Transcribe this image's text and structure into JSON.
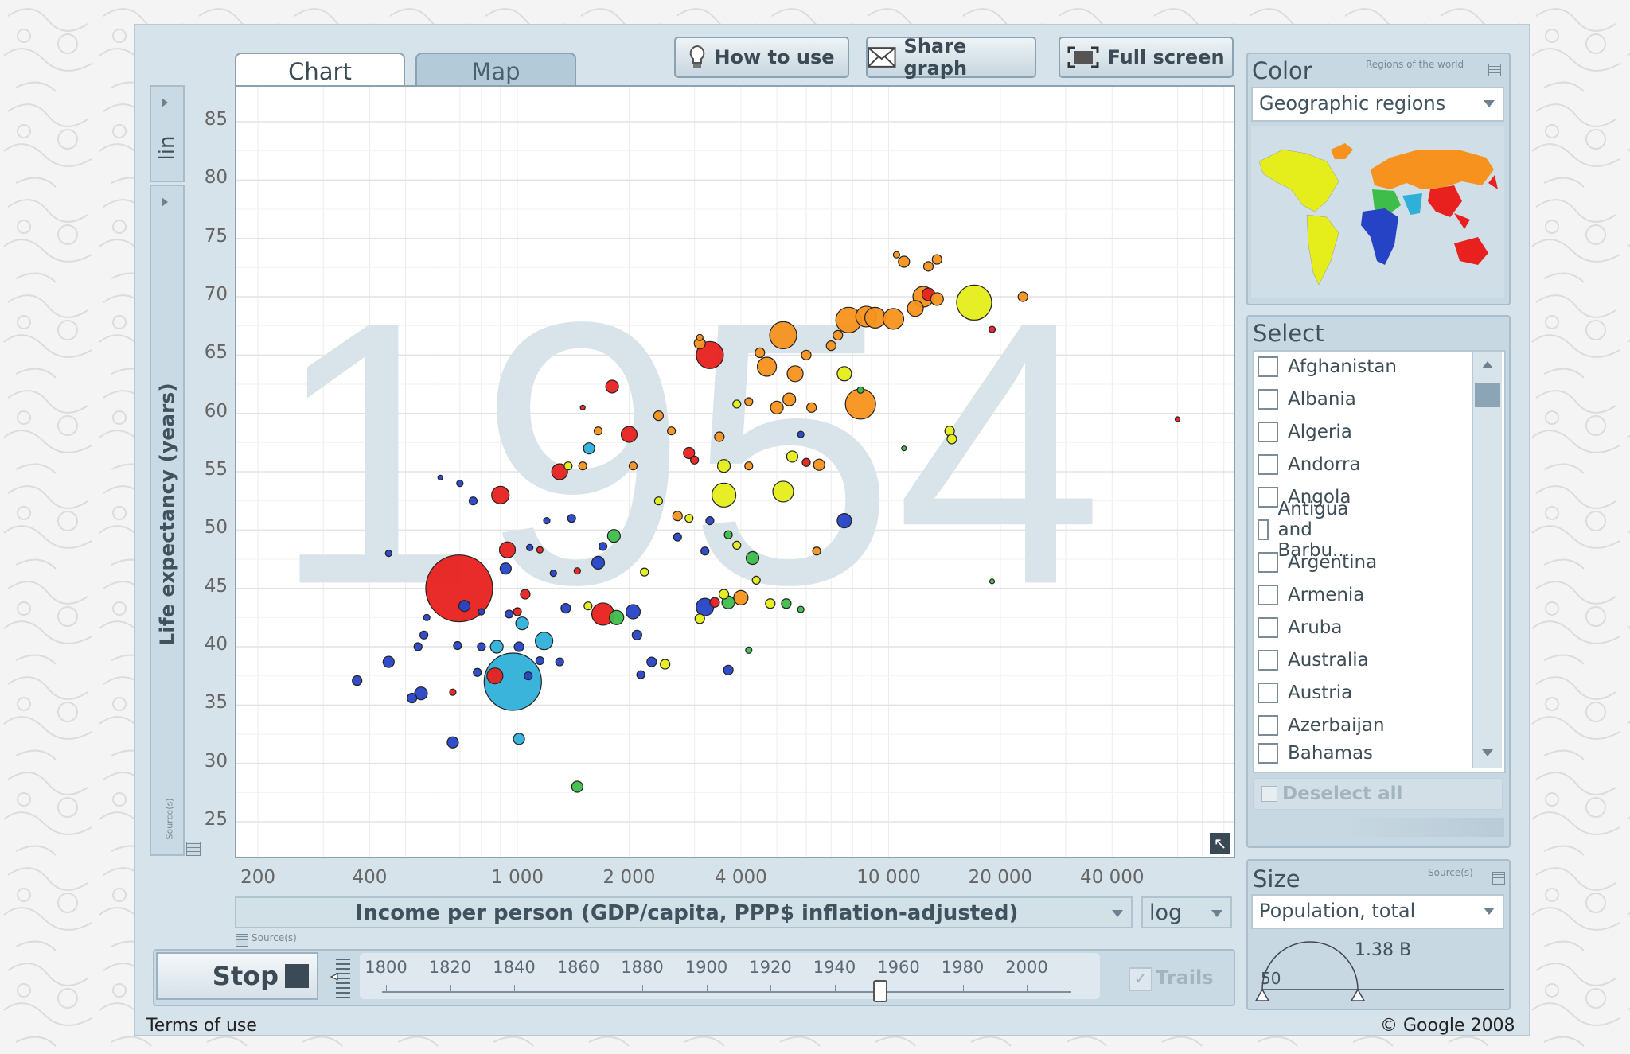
{
  "tabs": {
    "chart": "Chart",
    "map": "Map"
  },
  "toolbar": {
    "how_to_use": "How to use",
    "share_graph": "Share graph",
    "full_screen": "Full screen"
  },
  "y_axis": {
    "scale": "lin",
    "label": "Life expectancy (years)",
    "source": "Source(s)"
  },
  "x_axis": {
    "label": "Income per person (GDP/capita, PPP$ inflation-adjusted)",
    "scale": "log",
    "source": "Source(s)"
  },
  "year_watermark": "1954",
  "color_panel": {
    "title": "Color",
    "subtitle": "Regions of the world",
    "selected": "Geographic regions"
  },
  "select_panel": {
    "title": "Select",
    "countries": [
      "Afghanistan",
      "Albania",
      "Algeria",
      "Andorra",
      "Angola",
      "Antigua and Barbu...",
      "Argentina",
      "Armenia",
      "Aruba",
      "Australia",
      "Austria",
      "Azerbaijan",
      "Bahamas"
    ],
    "deselect_all": "Deselect all"
  },
  "size_panel": {
    "title": "Size",
    "source": "Source(s)",
    "selected": "Population, total",
    "max_label": "1.38 B",
    "min_label": "50"
  },
  "playback": {
    "stop_label": "Stop",
    "trails_label": "Trails",
    "years": [
      "1800",
      "1820",
      "1840",
      "1860",
      "1880",
      "1900",
      "1920",
      "1940",
      "1960",
      "1980",
      "2000"
    ],
    "current_year": 1954
  },
  "footer": {
    "terms": "Terms of use",
    "copyright": "© Google 2008"
  },
  "colors": {
    "south_asia": "#e8211f",
    "east_asia": "#2fb0d9",
    "africa": "#2643c6",
    "americas": "#e5ee1a",
    "europe": "#f7921e",
    "middle_east": "#3ebd4a"
  },
  "chart_data": {
    "type": "scatter",
    "title": "",
    "xlabel": "Income per person (GDP/capita, PPP$ inflation-adjusted)",
    "ylabel": "Life expectancy (years)",
    "x_scale": "log",
    "x_ticks": [
      "200",
      "400",
      "1 000",
      "2 000",
      "4 000",
      "10 000",
      "20 000",
      "40 000"
    ],
    "y_ticks": [
      85,
      80,
      75,
      70,
      65,
      60,
      55,
      50,
      45,
      40,
      35,
      30,
      25
    ],
    "xlim": [
      175,
      85000
    ],
    "ylim": [
      22,
      88
    ],
    "points": [
      {
        "x": 697,
        "y": 45,
        "r": 42,
        "c": "#e8211f"
      },
      {
        "x": 972,
        "y": 37,
        "r": 36,
        "c": "#2fb0d9"
      },
      {
        "x": 5200,
        "y": 66.7,
        "r": 17,
        "c": "#f7921e"
      },
      {
        "x": 7800,
        "y": 68,
        "r": 16,
        "c": "#f7921e"
      },
      {
        "x": 8700,
        "y": 68.3,
        "r": 13,
        "c": "#f7921e"
      },
      {
        "x": 9200,
        "y": 68.2,
        "r": 13,
        "c": "#f7921e"
      },
      {
        "x": 10300,
        "y": 68.1,
        "r": 13,
        "c": "#f7921e"
      },
      {
        "x": 11800,
        "y": 69,
        "r": 10,
        "c": "#f7921e"
      },
      {
        "x": 12400,
        "y": 70,
        "r": 13,
        "c": "#f7921e"
      },
      {
        "x": 17000,
        "y": 69.5,
        "r": 22,
        "c": "#e5ee1a"
      },
      {
        "x": 12800,
        "y": 70.2,
        "r": 8,
        "c": "#e8211f"
      },
      {
        "x": 13500,
        "y": 69.8,
        "r": 8,
        "c": "#f7921e"
      },
      {
        "x": 11000,
        "y": 73,
        "r": 7,
        "c": "#f7921e"
      },
      {
        "x": 12800,
        "y": 72.6,
        "r": 6,
        "c": "#f7921e"
      },
      {
        "x": 13500,
        "y": 73.2,
        "r": 6,
        "c": "#f7921e"
      },
      {
        "x": 10500,
        "y": 73.6,
        "r": 4,
        "c": "#f7921e"
      },
      {
        "x": 23000,
        "y": 70,
        "r": 6,
        "c": "#f7921e"
      },
      {
        "x": 19000,
        "y": 67.2,
        "r": 4,
        "c": "#e8211f"
      },
      {
        "x": 3300,
        "y": 65,
        "r": 17,
        "c": "#e8211f"
      },
      {
        "x": 3100,
        "y": 66,
        "r": 7,
        "c": "#f7921e"
      },
      {
        "x": 4700,
        "y": 64,
        "r": 12,
        "c": "#f7921e"
      },
      {
        "x": 5600,
        "y": 63.4,
        "r": 10,
        "c": "#f7921e"
      },
      {
        "x": 7600,
        "y": 63.4,
        "r": 9,
        "c": "#e5ee1a"
      },
      {
        "x": 8400,
        "y": 60.8,
        "r": 19,
        "c": "#f7921e"
      },
      {
        "x": 7000,
        "y": 65.8,
        "r": 6,
        "c": "#f7921e"
      },
      {
        "x": 6000,
        "y": 65,
        "r": 6,
        "c": "#f7921e"
      },
      {
        "x": 7300,
        "y": 66.7,
        "r": 6,
        "c": "#f7921e"
      },
      {
        "x": 4500,
        "y": 65.2,
        "r": 6,
        "c": "#f7921e"
      },
      {
        "x": 5400,
        "y": 61.2,
        "r": 8,
        "c": "#f7921e"
      },
      {
        "x": 5000,
        "y": 60.5,
        "r": 8,
        "c": "#f7921e"
      },
      {
        "x": 6200,
        "y": 60.5,
        "r": 6,
        "c": "#f7921e"
      },
      {
        "x": 4200,
        "y": 61,
        "r": 5,
        "c": "#f7921e"
      },
      {
        "x": 1800,
        "y": 62.3,
        "r": 8,
        "c": "#e8211f"
      },
      {
        "x": 2000,
        "y": 58.2,
        "r": 10,
        "c": "#e8211f"
      },
      {
        "x": 2400,
        "y": 59.8,
        "r": 6,
        "c": "#f7921e"
      },
      {
        "x": 2600,
        "y": 58.5,
        "r": 5,
        "c": "#f7921e"
      },
      {
        "x": 3500,
        "y": 58,
        "r": 6,
        "c": "#f7921e"
      },
      {
        "x": 2900,
        "y": 56.6,
        "r": 7,
        "c": "#e8211f"
      },
      {
        "x": 2050,
        "y": 55.5,
        "r": 5,
        "c": "#f7921e"
      },
      {
        "x": 1650,
        "y": 58.5,
        "r": 5,
        "c": "#f7921e"
      },
      {
        "x": 1560,
        "y": 57,
        "r": 7,
        "c": "#2fb0d9"
      },
      {
        "x": 1500,
        "y": 55.5,
        "r": 5,
        "c": "#f7921e"
      },
      {
        "x": 1300,
        "y": 55,
        "r": 10,
        "c": "#e8211f"
      },
      {
        "x": 1370,
        "y": 55.5,
        "r": 5,
        "c": "#e5ee1a"
      },
      {
        "x": 3600,
        "y": 55.5,
        "r": 8,
        "c": "#e5ee1a"
      },
      {
        "x": 4200,
        "y": 55.5,
        "r": 5,
        "c": "#f7921e"
      },
      {
        "x": 5500,
        "y": 56.3,
        "r": 7,
        "c": "#e5ee1a"
      },
      {
        "x": 6500,
        "y": 55.6,
        "r": 7,
        "c": "#f7921e"
      },
      {
        "x": 3000,
        "y": 56,
        "r": 5,
        "c": "#e8211f"
      },
      {
        "x": 3600,
        "y": 53,
        "r": 15,
        "c": "#e5ee1a"
      },
      {
        "x": 5200,
        "y": 53.3,
        "r": 13,
        "c": "#e5ee1a"
      },
      {
        "x": 2400,
        "y": 52.5,
        "r": 5,
        "c": "#e5ee1a"
      },
      {
        "x": 2700,
        "y": 51.2,
        "r": 6,
        "c": "#f7921e"
      },
      {
        "x": 2900,
        "y": 51,
        "r": 5,
        "c": "#e5ee1a"
      },
      {
        "x": 3300,
        "y": 50.8,
        "r": 5,
        "c": "#2643c6"
      },
      {
        "x": 900,
        "y": 53,
        "r": 11,
        "c": "#e8211f"
      },
      {
        "x": 760,
        "y": 52.5,
        "r": 5,
        "c": "#2643c6"
      },
      {
        "x": 700,
        "y": 54,
        "r": 4,
        "c": "#2643c6"
      },
      {
        "x": 1400,
        "y": 51,
        "r": 5,
        "c": "#2643c6"
      },
      {
        "x": 1200,
        "y": 50.8,
        "r": 4,
        "c": "#2643c6"
      },
      {
        "x": 1820,
        "y": 49.5,
        "r": 8,
        "c": "#3ebd4a"
      },
      {
        "x": 1700,
        "y": 48.6,
        "r": 5,
        "c": "#2643c6"
      },
      {
        "x": 940,
        "y": 48.3,
        "r": 10,
        "c": "#e8211f"
      },
      {
        "x": 1080,
        "y": 48.5,
        "r": 4,
        "c": "#2643c6"
      },
      {
        "x": 1150,
        "y": 48.3,
        "r": 4,
        "c": "#e8211f"
      },
      {
        "x": 1650,
        "y": 47.2,
        "r": 8,
        "c": "#2643c6"
      },
      {
        "x": 2700,
        "y": 49.4,
        "r": 5,
        "c": "#2643c6"
      },
      {
        "x": 3700,
        "y": 49.6,
        "r": 5,
        "c": "#3ebd4a"
      },
      {
        "x": 3900,
        "y": 48.7,
        "r": 5,
        "c": "#e5ee1a"
      },
      {
        "x": 4300,
        "y": 47.6,
        "r": 8,
        "c": "#3ebd4a"
      },
      {
        "x": 3200,
        "y": 48.2,
        "r": 5,
        "c": "#2643c6"
      },
      {
        "x": 2200,
        "y": 46.4,
        "r": 5,
        "c": "#e5ee1a"
      },
      {
        "x": 1450,
        "y": 46.5,
        "r": 4,
        "c": "#e8211f"
      },
      {
        "x": 1250,
        "y": 46.3,
        "r": 4,
        "c": "#2643c6"
      },
      {
        "x": 930,
        "y": 46.7,
        "r": 7,
        "c": "#2643c6"
      },
      {
        "x": 7600,
        "y": 50.8,
        "r": 9,
        "c": "#2643c6"
      },
      {
        "x": 6400,
        "y": 48.2,
        "r": 5,
        "c": "#f7921e"
      },
      {
        "x": 19000,
        "y": 45.6,
        "r": 3,
        "c": "#3ebd4a"
      },
      {
        "x": 4400,
        "y": 45.7,
        "r": 5,
        "c": "#e5ee1a"
      },
      {
        "x": 3600,
        "y": 44.5,
        "r": 6,
        "c": "#e5ee1a"
      },
      {
        "x": 1050,
        "y": 44.5,
        "r": 6,
        "c": "#e8211f"
      },
      {
        "x": 1700,
        "y": 42.8,
        "r": 14,
        "c": "#e8211f"
      },
      {
        "x": 1850,
        "y": 42.5,
        "r": 9,
        "c": "#3ebd4a"
      },
      {
        "x": 2050,
        "y": 43,
        "r": 9,
        "c": "#2643c6"
      },
      {
        "x": 1350,
        "y": 43.3,
        "r": 6,
        "c": "#2643c6"
      },
      {
        "x": 1030,
        "y": 42,
        "r": 8,
        "c": "#2fb0d9"
      },
      {
        "x": 1000,
        "y": 43,
        "r": 5,
        "c": "#e8211f"
      },
      {
        "x": 950,
        "y": 42.8,
        "r": 5,
        "c": "#2643c6"
      },
      {
        "x": 3200,
        "y": 43.4,
        "r": 11,
        "c": "#2643c6"
      },
      {
        "x": 3400,
        "y": 43.8,
        "r": 6,
        "c": "#e8211f"
      },
      {
        "x": 3700,
        "y": 43.8,
        "r": 8,
        "c": "#3ebd4a"
      },
      {
        "x": 4000,
        "y": 44.2,
        "r": 9,
        "c": "#f7921e"
      },
      {
        "x": 4800,
        "y": 43.7,
        "r": 6,
        "c": "#e5ee1a"
      },
      {
        "x": 5300,
        "y": 43.7,
        "r": 6,
        "c": "#3ebd4a"
      },
      {
        "x": 5800,
        "y": 43.2,
        "r": 4,
        "c": "#3ebd4a"
      },
      {
        "x": 3100,
        "y": 42.4,
        "r": 6,
        "c": "#e5ee1a"
      },
      {
        "x": 1550,
        "y": 43.5,
        "r": 5,
        "c": "#e5ee1a"
      },
      {
        "x": 2100,
        "y": 41,
        "r": 6,
        "c": "#2643c6"
      },
      {
        "x": 720,
        "y": 43.5,
        "r": 7,
        "c": "#2643c6"
      },
      {
        "x": 800,
        "y": 43,
        "r": 4,
        "c": "#2643c6"
      },
      {
        "x": 570,
        "y": 42.5,
        "r": 4,
        "c": "#2643c6"
      },
      {
        "x": 560,
        "y": 41,
        "r": 5,
        "c": "#2643c6"
      },
      {
        "x": 1180,
        "y": 40.5,
        "r": 11,
        "c": "#2fb0d9"
      },
      {
        "x": 1010,
        "y": 40,
        "r": 6,
        "c": "#2643c6"
      },
      {
        "x": 880,
        "y": 40,
        "r": 8,
        "c": "#2fb0d9"
      },
      {
        "x": 800,
        "y": 40,
        "r": 5,
        "c": "#2643c6"
      },
      {
        "x": 690,
        "y": 40.1,
        "r": 5,
        "c": "#2643c6"
      },
      {
        "x": 540,
        "y": 40,
        "r": 5,
        "c": "#2643c6"
      },
      {
        "x": 1150,
        "y": 38.8,
        "r": 5,
        "c": "#2643c6"
      },
      {
        "x": 1300,
        "y": 38.7,
        "r": 5,
        "c": "#2643c6"
      },
      {
        "x": 2300,
        "y": 38.7,
        "r": 6,
        "c": "#2643c6"
      },
      {
        "x": 2500,
        "y": 38.5,
        "r": 6,
        "c": "#e5ee1a"
      },
      {
        "x": 3700,
        "y": 38,
        "r": 6,
        "c": "#2643c6"
      },
      {
        "x": 4200,
        "y": 39.7,
        "r": 4,
        "c": "#3ebd4a"
      },
      {
        "x": 2150,
        "y": 37.6,
        "r": 5,
        "c": "#2643c6"
      },
      {
        "x": 870,
        "y": 37.5,
        "r": 10,
        "c": "#e8211f"
      },
      {
        "x": 1070,
        "y": 37.5,
        "r": 5,
        "c": "#2643c6"
      },
      {
        "x": 450,
        "y": 38.7,
        "r": 7,
        "c": "#2643c6"
      },
      {
        "x": 780,
        "y": 37.8,
        "r": 5,
        "c": "#2643c6"
      },
      {
        "x": 370,
        "y": 37.1,
        "r": 6,
        "c": "#2643c6"
      },
      {
        "x": 550,
        "y": 36,
        "r": 8,
        "c": "#2643c6"
      },
      {
        "x": 520,
        "y": 35.6,
        "r": 6,
        "c": "#2643c6"
      },
      {
        "x": 670,
        "y": 36.1,
        "r": 4,
        "c": "#e8211f"
      },
      {
        "x": 670,
        "y": 31.8,
        "r": 7,
        "c": "#2643c6"
      },
      {
        "x": 1010,
        "y": 32.1,
        "r": 7,
        "c": "#2fb0d9"
      },
      {
        "x": 1450,
        "y": 28,
        "r": 7,
        "c": "#3ebd4a"
      },
      {
        "x": 450,
        "y": 48,
        "r": 4,
        "c": "#2643c6"
      },
      {
        "x": 620,
        "y": 54.5,
        "r": 3,
        "c": "#2643c6"
      },
      {
        "x": 1500,
        "y": 60.5,
        "r": 3,
        "c": "#e8211f"
      },
      {
        "x": 3100,
        "y": 66.5,
        "r": 4,
        "c": "#f7921e"
      },
      {
        "x": 3900,
        "y": 60.8,
        "r": 5,
        "c": "#e5ee1a"
      },
      {
        "x": 5800,
        "y": 58.2,
        "r": 4,
        "c": "#2643c6"
      },
      {
        "x": 6000,
        "y": 55.8,
        "r": 5,
        "c": "#e8211f"
      },
      {
        "x": 14600,
        "y": 58.5,
        "r": 6,
        "c": "#e5ee1a"
      },
      {
        "x": 14800,
        "y": 57.8,
        "r": 6,
        "c": "#e5ee1a"
      },
      {
        "x": 11000,
        "y": 57,
        "r": 3,
        "c": "#3ebd4a"
      },
      {
        "x": 8400,
        "y": 62,
        "r": 4,
        "c": "#3ebd4a"
      },
      {
        "x": 60000,
        "y": 59.5,
        "r": 3,
        "c": "#e8211f"
      }
    ]
  }
}
